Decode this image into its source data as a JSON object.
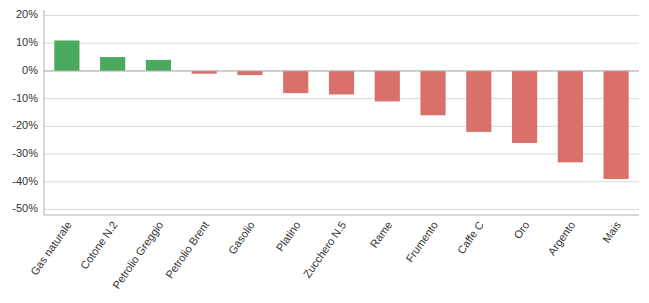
{
  "chart_data": {
    "type": "bar",
    "categories": [
      "Gas naturale",
      "Cotone N.2",
      "Petrolio Greggio",
      "Petrolio Brent",
      "Gasolio",
      "Platino",
      "Zucchero N.5",
      "Rame",
      "Frumento",
      "Caffe C",
      "Oro",
      "Argento",
      "Mais"
    ],
    "values": [
      11,
      5,
      4,
      -1,
      -1.5,
      -8,
      -8.5,
      -11,
      -16,
      -22,
      -26,
      -33,
      -39
    ],
    "colors": [
      "#4aaa5e",
      "#4aaa5e",
      "#4aaa5e",
      "#d9706a",
      "#d9706a",
      "#d9706a",
      "#d9706a",
      "#d9706a",
      "#d9706a",
      "#d9706a",
      "#d9706a",
      "#d9706a",
      "#d9706a"
    ],
    "ylim": [
      -52,
      22
    ],
    "yticks": [
      {
        "value": -50,
        "label": "-50%"
      },
      {
        "value": -40,
        "label": "-40%"
      },
      {
        "value": -30,
        "label": "-30%"
      },
      {
        "value": -20,
        "label": "-20%"
      },
      {
        "value": -10,
        "label": "-10%"
      },
      {
        "value": 0,
        "label": "0%"
      },
      {
        "value": 10,
        "label": "10%"
      },
      {
        "value": 20,
        "label": "20%"
      }
    ],
    "grid": true
  }
}
